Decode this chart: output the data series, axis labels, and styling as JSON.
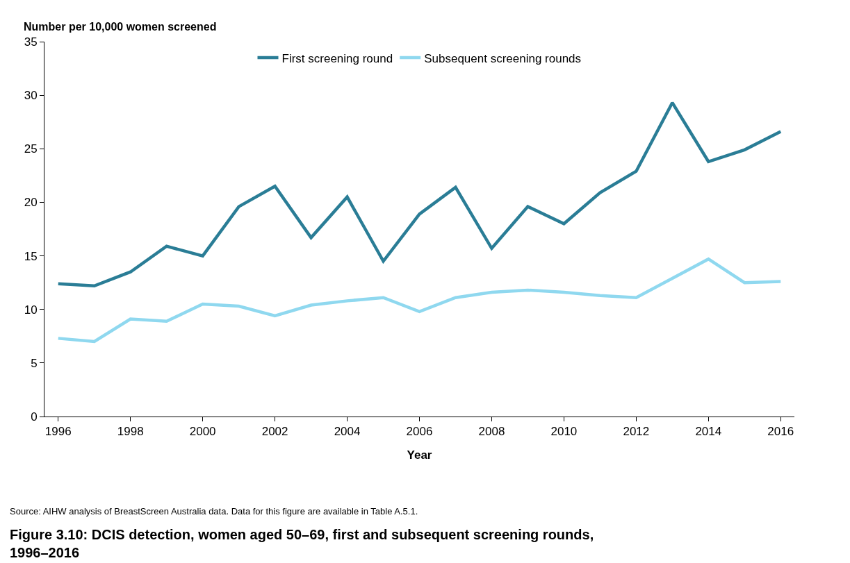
{
  "chart_data": {
    "type": "line",
    "title": "Figure 3.10: DCIS detection, women aged 50–69, first and subsequent screening rounds, 1996–2016",
    "xlabel": "Year",
    "ylabel": "Number per 10,000 women screened",
    "annotations": [
      "Source: AIHW analysis of BreastScreen Australia data. Data for this figure are available in Table A.5.1."
    ],
    "x": [
      1996,
      1997,
      1998,
      1999,
      2000,
      2001,
      2002,
      2003,
      2004,
      2005,
      2006,
      2007,
      2008,
      2009,
      2010,
      2011,
      2012,
      2013,
      2014,
      2015,
      2016
    ],
    "series": [
      {
        "name": "First screening round",
        "color": "#2a7d96",
        "values": [
          12.4,
          12.2,
          13.5,
          15.9,
          15.0,
          19.6,
          21.5,
          16.7,
          20.5,
          14.5,
          18.9,
          21.4,
          15.7,
          19.6,
          18.0,
          20.9,
          22.9,
          29.3,
          23.8,
          24.9,
          26.6
        ]
      },
      {
        "name": "Subsequent screening rounds",
        "color": "#8fd8ef",
        "values": [
          7.3,
          7.0,
          9.1,
          8.9,
          10.5,
          10.3,
          9.4,
          10.4,
          10.8,
          11.1,
          9.8,
          11.1,
          11.6,
          11.8,
          11.6,
          11.3,
          11.1,
          12.9,
          14.7,
          12.5,
          12.6
        ]
      }
    ],
    "xlim": [
      1995.62,
      2016.38
    ],
    "xticks": [
      1996,
      1998,
      2000,
      2002,
      2004,
      2006,
      2008,
      2010,
      2012,
      2014,
      2016
    ],
    "ylim": [
      0,
      35
    ],
    "yticks": [
      0,
      5,
      10,
      15,
      20,
      25,
      30,
      35
    ],
    "legend": "top",
    "marker": "none",
    "line_style": "solid"
  }
}
